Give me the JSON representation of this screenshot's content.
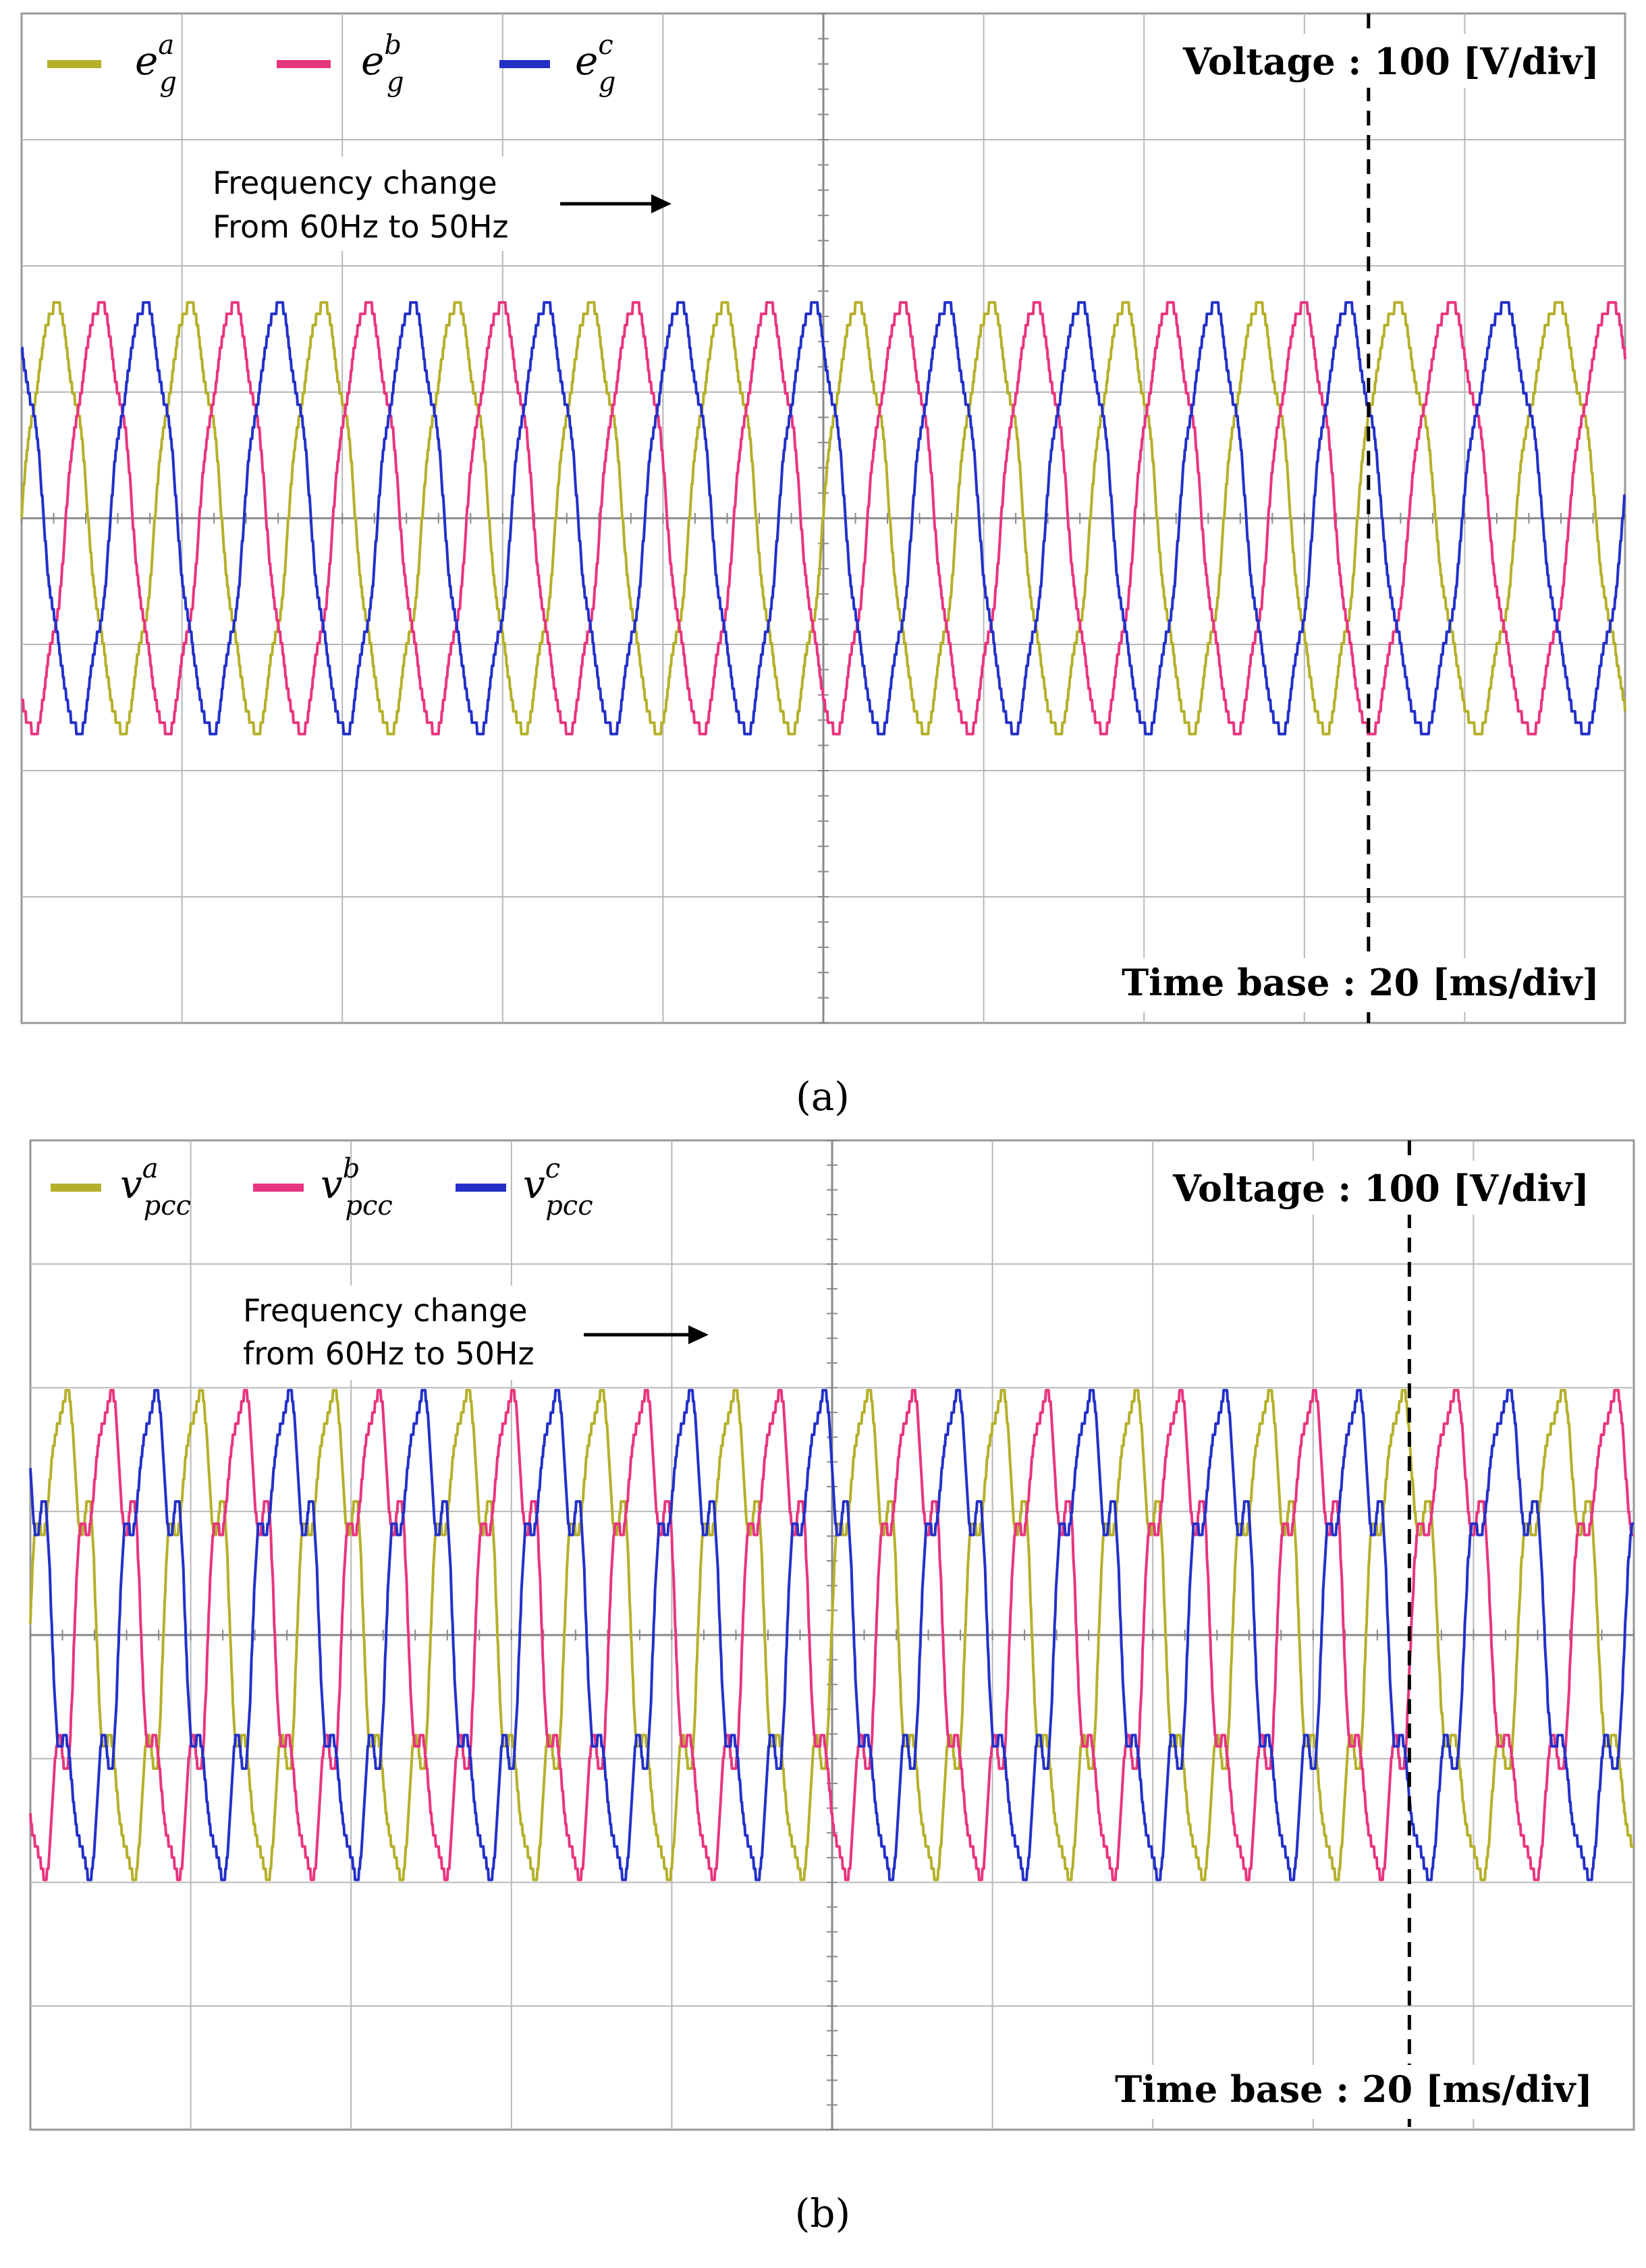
{
  "colors": {
    "phase_a": "#b5b02a",
    "phase_b": "#e8357f",
    "phase_c": "#2330c8",
    "grid": "#b8b8b8",
    "axis": "#888888",
    "frame": "#999999"
  },
  "panels": [
    {
      "id": "a",
      "caption": "(a)",
      "voltage_label": "Voltage : 100 [V/div]",
      "timebase_label": "Time base : 20 [ms/div]",
      "annotation_line1": "Frequency change",
      "annotation_line2": "From 60Hz to 50Hz",
      "legend": [
        {
          "base": "e",
          "sup": "a",
          "sub": "g"
        },
        {
          "base": "e",
          "sup": "b",
          "sub": "g"
        },
        {
          "base": "e",
          "sup": "c",
          "sub": "g"
        }
      ]
    },
    {
      "id": "b",
      "caption": "(b)",
      "voltage_label": "Voltage : 100 [V/div]",
      "timebase_label": "Time base : 20 [ms/div]",
      "annotation_line1": "Frequency change",
      "annotation_line2": "from 60Hz to 50Hz",
      "legend": [
        {
          "base": "v",
          "sup": "a",
          "sub": "pcc"
        },
        {
          "base": "v",
          "sup": "b",
          "sub": "pcc"
        },
        {
          "base": "v",
          "sup": "c",
          "sub": "pcc"
        }
      ]
    }
  ],
  "chart_data": [
    {
      "type": "line",
      "x_unit": "div",
      "x_range": [
        0,
        10
      ],
      "y_range": [
        -4,
        4
      ],
      "x_scale": "20 ms/div",
      "y_scale": "100 V/div",
      "event_x": 8.4,
      "series": [
        {
          "name": "e_g^a",
          "amplitude": 1.65,
          "phase_deg": 0,
          "freq_before_hz": 60,
          "freq_after_hz": 50,
          "harmonic_ripple": 0.08
        },
        {
          "name": "e_g^b",
          "amplitude": 1.65,
          "phase_deg": -120,
          "freq_before_hz": 60,
          "freq_after_hz": 50,
          "harmonic_ripple": 0.08
        },
        {
          "name": "e_g^c",
          "amplitude": 1.65,
          "phase_deg": 120,
          "freq_before_hz": 60,
          "freq_after_hz": 50,
          "harmonic_ripple": 0.08
        }
      ]
    },
    {
      "type": "line",
      "x_unit": "div",
      "x_range": [
        0,
        10
      ],
      "y_range": [
        -4,
        4
      ],
      "x_scale": "20 ms/div",
      "y_scale": "100 V/div",
      "event_x": 8.6,
      "series": [
        {
          "name": "v_pcc^a",
          "amplitude": 1.75,
          "phase_deg": 0,
          "freq_before_hz": 60,
          "freq_after_hz": 50,
          "harmonic_ripple": 0.3
        },
        {
          "name": "v_pcc^b",
          "amplitude": 1.75,
          "phase_deg": -120,
          "freq_before_hz": 60,
          "freq_after_hz": 50,
          "harmonic_ripple": 0.3
        },
        {
          "name": "v_pcc^c",
          "amplitude": 1.75,
          "phase_deg": 120,
          "freq_before_hz": 60,
          "freq_after_hz": 50,
          "harmonic_ripple": 0.3
        }
      ]
    }
  ]
}
